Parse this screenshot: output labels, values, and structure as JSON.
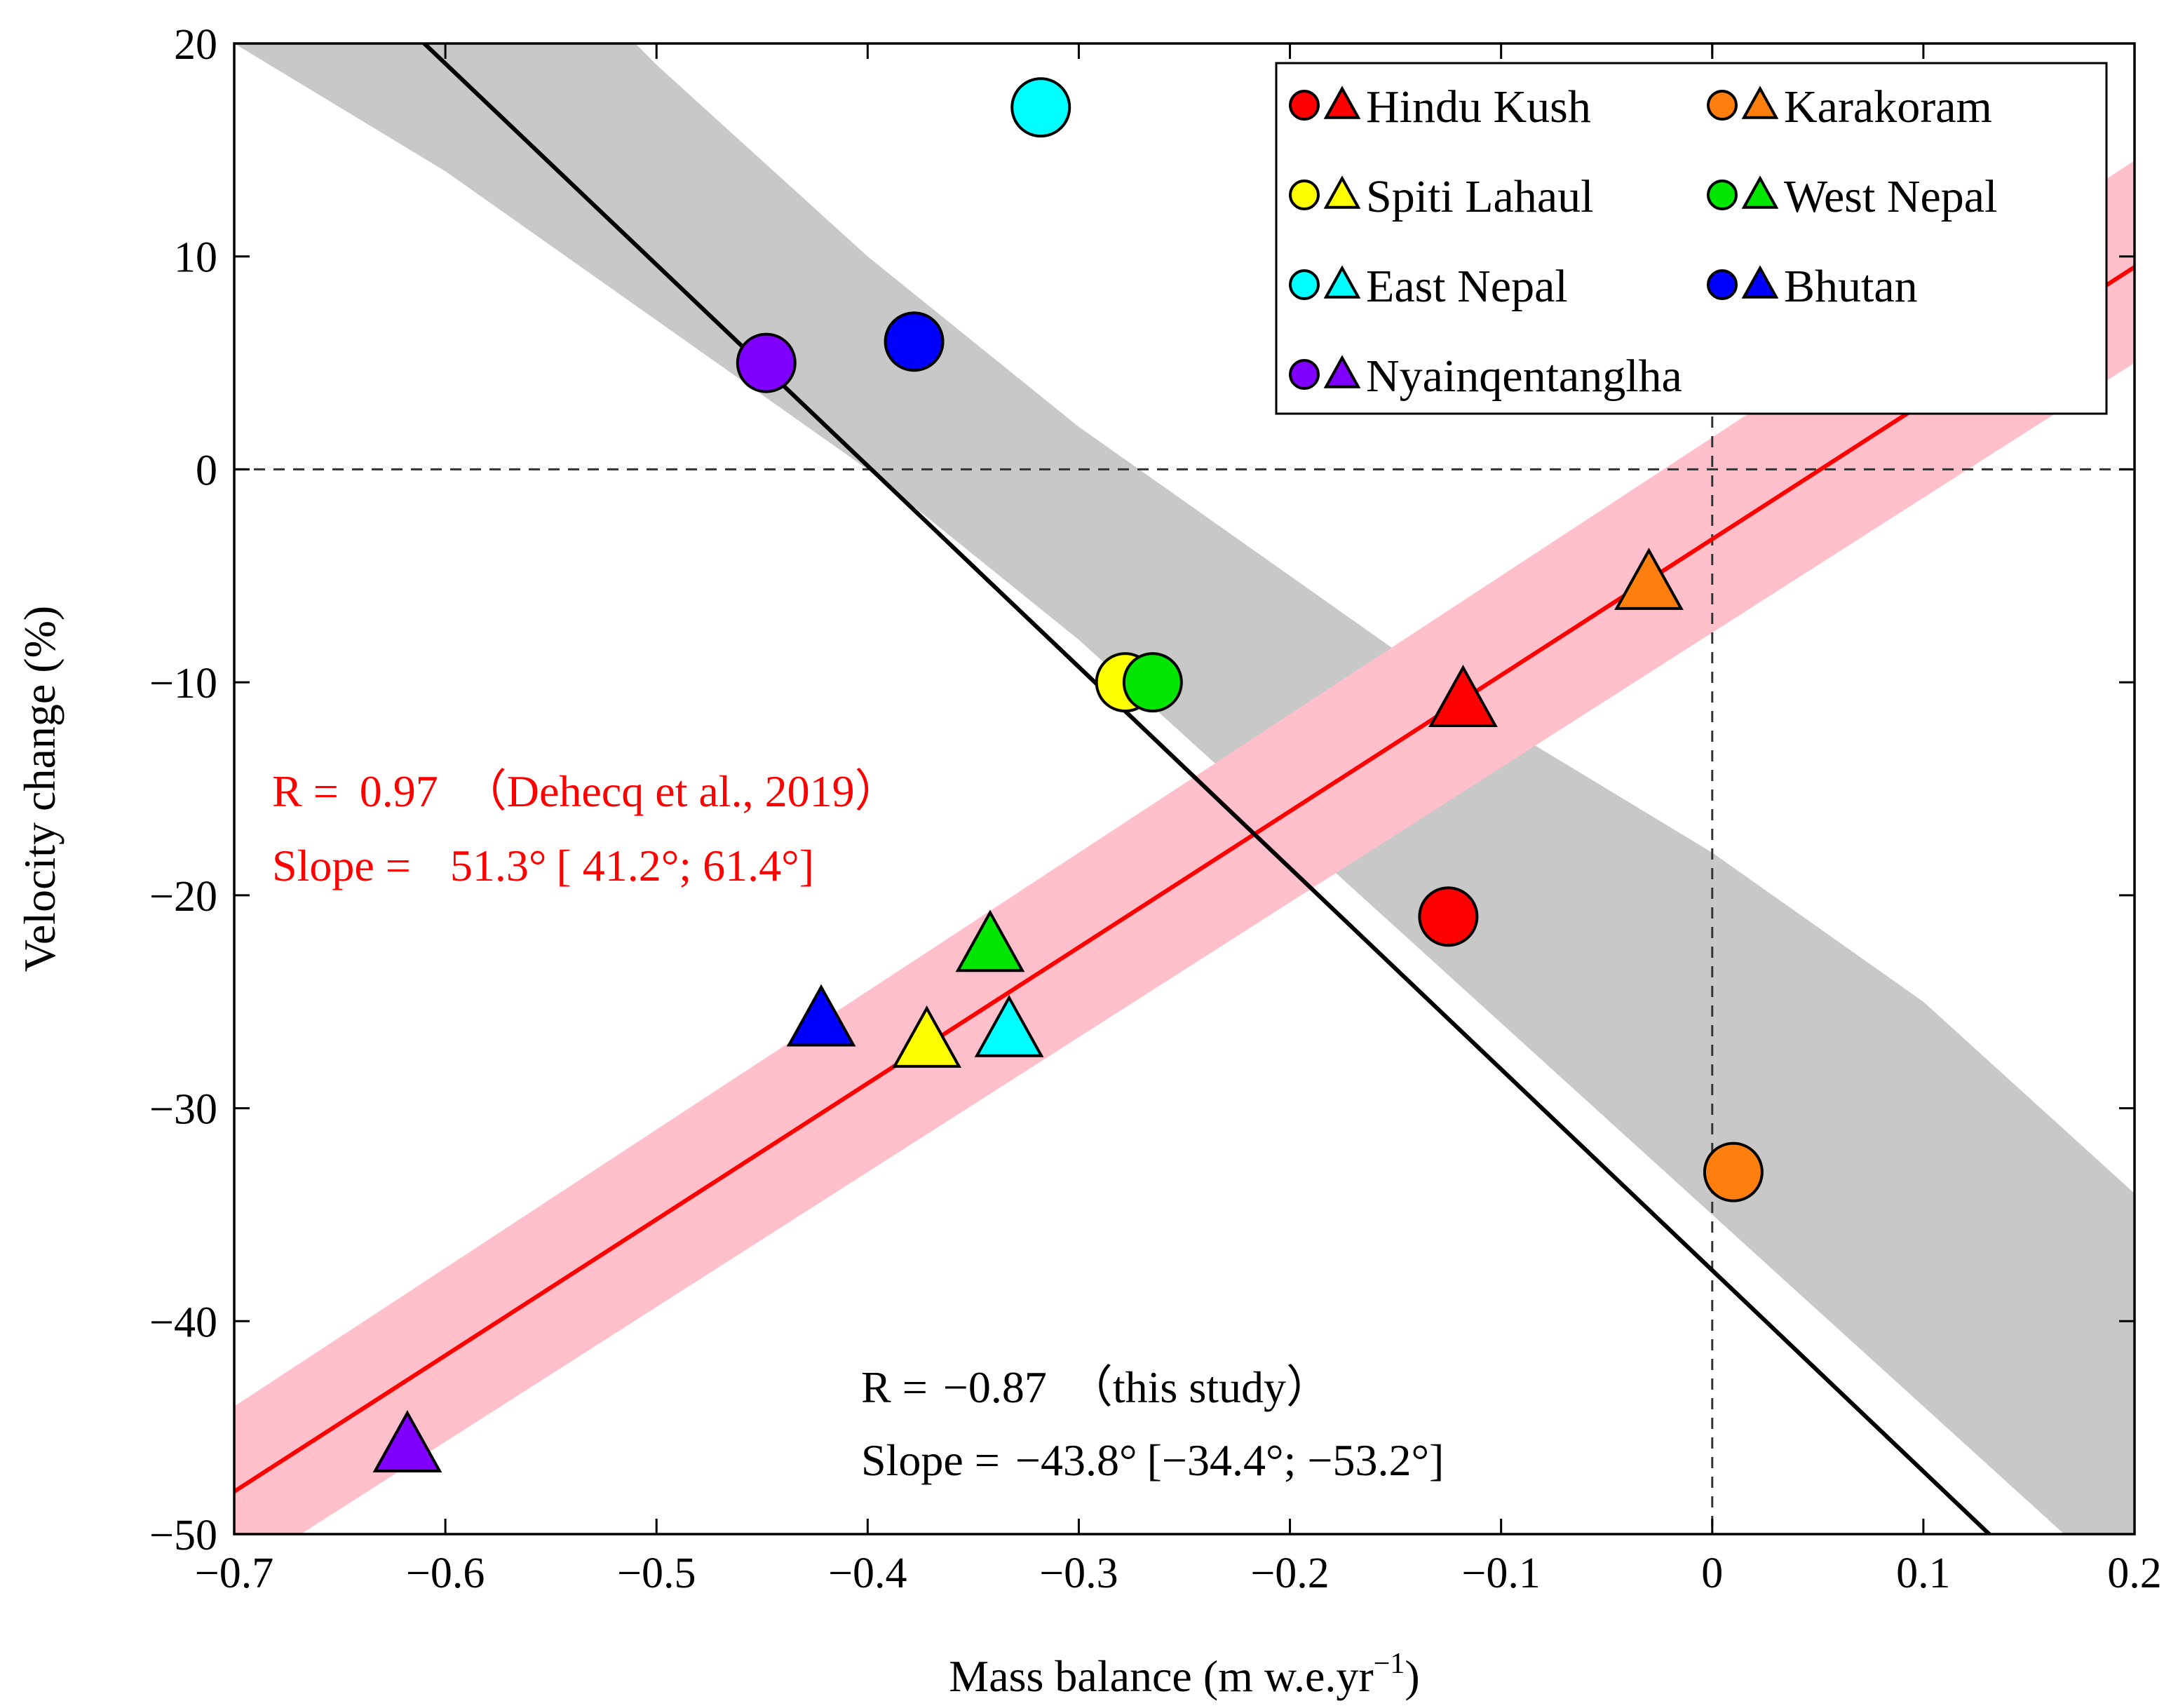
{
  "chart_data": {
    "type": "scatter",
    "xlabel": "Mass balance (m w.e.yr",
    "xlabel_sup": "−1",
    "xlabel_end": ")",
    "ylabel": "Velocity change (%)",
    "xlim": [
      -0.7,
      0.2
    ],
    "ylim": [
      -50,
      20
    ],
    "xticks": [
      -0.7,
      -0.6,
      -0.5,
      -0.4,
      -0.3,
      -0.2,
      -0.1,
      0,
      0.1,
      0.2
    ],
    "xtick_labels": [
      "−0.7",
      "−0.6",
      "−0.5",
      "−0.4",
      "−0.3",
      "−0.2",
      "−0.1",
      "0",
      "0.1",
      "0.2"
    ],
    "yticks": [
      20,
      10,
      0,
      -10,
      -20,
      -30,
      -40,
      -50
    ],
    "ytick_labels": [
      "20",
      "10",
      "0",
      "−10",
      "−20",
      "−30",
      "−40",
      "−50"
    ],
    "reference_lines": {
      "x": 0,
      "y": 0,
      "style": "dashed"
    },
    "regions": [
      {
        "name": "Hindu Kush",
        "color": "#ff0000"
      },
      {
        "name": "Karakoram",
        "color": "#ff7f0e"
      },
      {
        "name": "Spiti Lahaul",
        "color": "#ffff00"
      },
      {
        "name": "West Nepal",
        "color": "#00e600"
      },
      {
        "name": "East Nepal",
        "color": "#00ffff"
      },
      {
        "name": "Bhutan",
        "color": "#0000ff"
      },
      {
        "name": "Nyainqentanglha",
        "color": "#8000ff"
      }
    ],
    "series": [
      {
        "name": "this study",
        "marker": "circle",
        "points": [
          {
            "region": "Hindu Kush",
            "x": -0.125,
            "y": -21
          },
          {
            "region": "Karakoram",
            "x": 0.01,
            "y": -33
          },
          {
            "region": "Spiti Lahaul",
            "x": -0.278,
            "y": -10
          },
          {
            "region": "West Nepal",
            "x": -0.265,
            "y": -10
          },
          {
            "region": "East Nepal",
            "x": -0.318,
            "y": 17
          },
          {
            "region": "Bhutan",
            "x": -0.378,
            "y": 6
          },
          {
            "region": "Nyainqentanglha",
            "x": -0.448,
            "y": 5
          }
        ],
        "fit": {
          "color": "#000000",
          "x0": -0.7,
          "y0": 28.5,
          "x1": 0.2,
          "y1": -56.5
        },
        "band": {
          "color": "#c8c8c8",
          "xs": [
            -0.7,
            -0.6,
            -0.5,
            -0.4,
            -0.3,
            -0.2,
            -0.1,
            0.0,
            0.1,
            0.2
          ],
          "upper": [
            40,
            29,
            19,
            10,
            2,
            -5,
            -12,
            -18,
            -25,
            -34
          ],
          "lower": [
            20,
            14,
            7,
            0,
            -8,
            -17,
            -26,
            -35,
            -44,
            -53
          ]
        },
        "stats": {
          "r_label": "R = ",
          "r_value": "−0.87",
          "source": "（this study）",
          "slope_label": "Slope = ",
          "slope_value": "−43.8°",
          "slope_ci": "[−34.4°;  −53.2°]"
        }
      },
      {
        "name": "Dehecq et al., 2019",
        "marker": "triangle",
        "points": [
          {
            "region": "Hindu Kush",
            "x": -0.118,
            "y": -11
          },
          {
            "region": "Karakoram",
            "x": -0.03,
            "y": -5.5
          },
          {
            "region": "Spiti Lahaul",
            "x": -0.372,
            "y": -27
          },
          {
            "region": "West Nepal",
            "x": -0.342,
            "y": -22.5
          },
          {
            "region": "East Nepal",
            "x": -0.333,
            "y": -26.5
          },
          {
            "region": "Bhutan",
            "x": -0.422,
            "y": -26
          },
          {
            "region": "Nyainqentanglha",
            "x": -0.618,
            "y": -46
          }
        ],
        "fit": {
          "color": "#ff0000",
          "x0": -0.7,
          "y0": -48,
          "x1": 0.2,
          "y1": 9.5
        },
        "band": {
          "color": "#ffc0cb",
          "xs": [
            -0.7,
            0.2
          ],
          "upper": [
            -44,
            14.5
          ],
          "lower": [
            -52,
            5
          ]
        },
        "stats": {
          "r_label": "R = ",
          "r_value": "0.97",
          "source": "（Dehecq et al., 2019）",
          "slope_label": "Slope = ",
          "slope_value": "51.3°",
          "slope_ci": "[ 41.2°;  61.4°]"
        }
      }
    ],
    "legend_position": "top-right"
  }
}
